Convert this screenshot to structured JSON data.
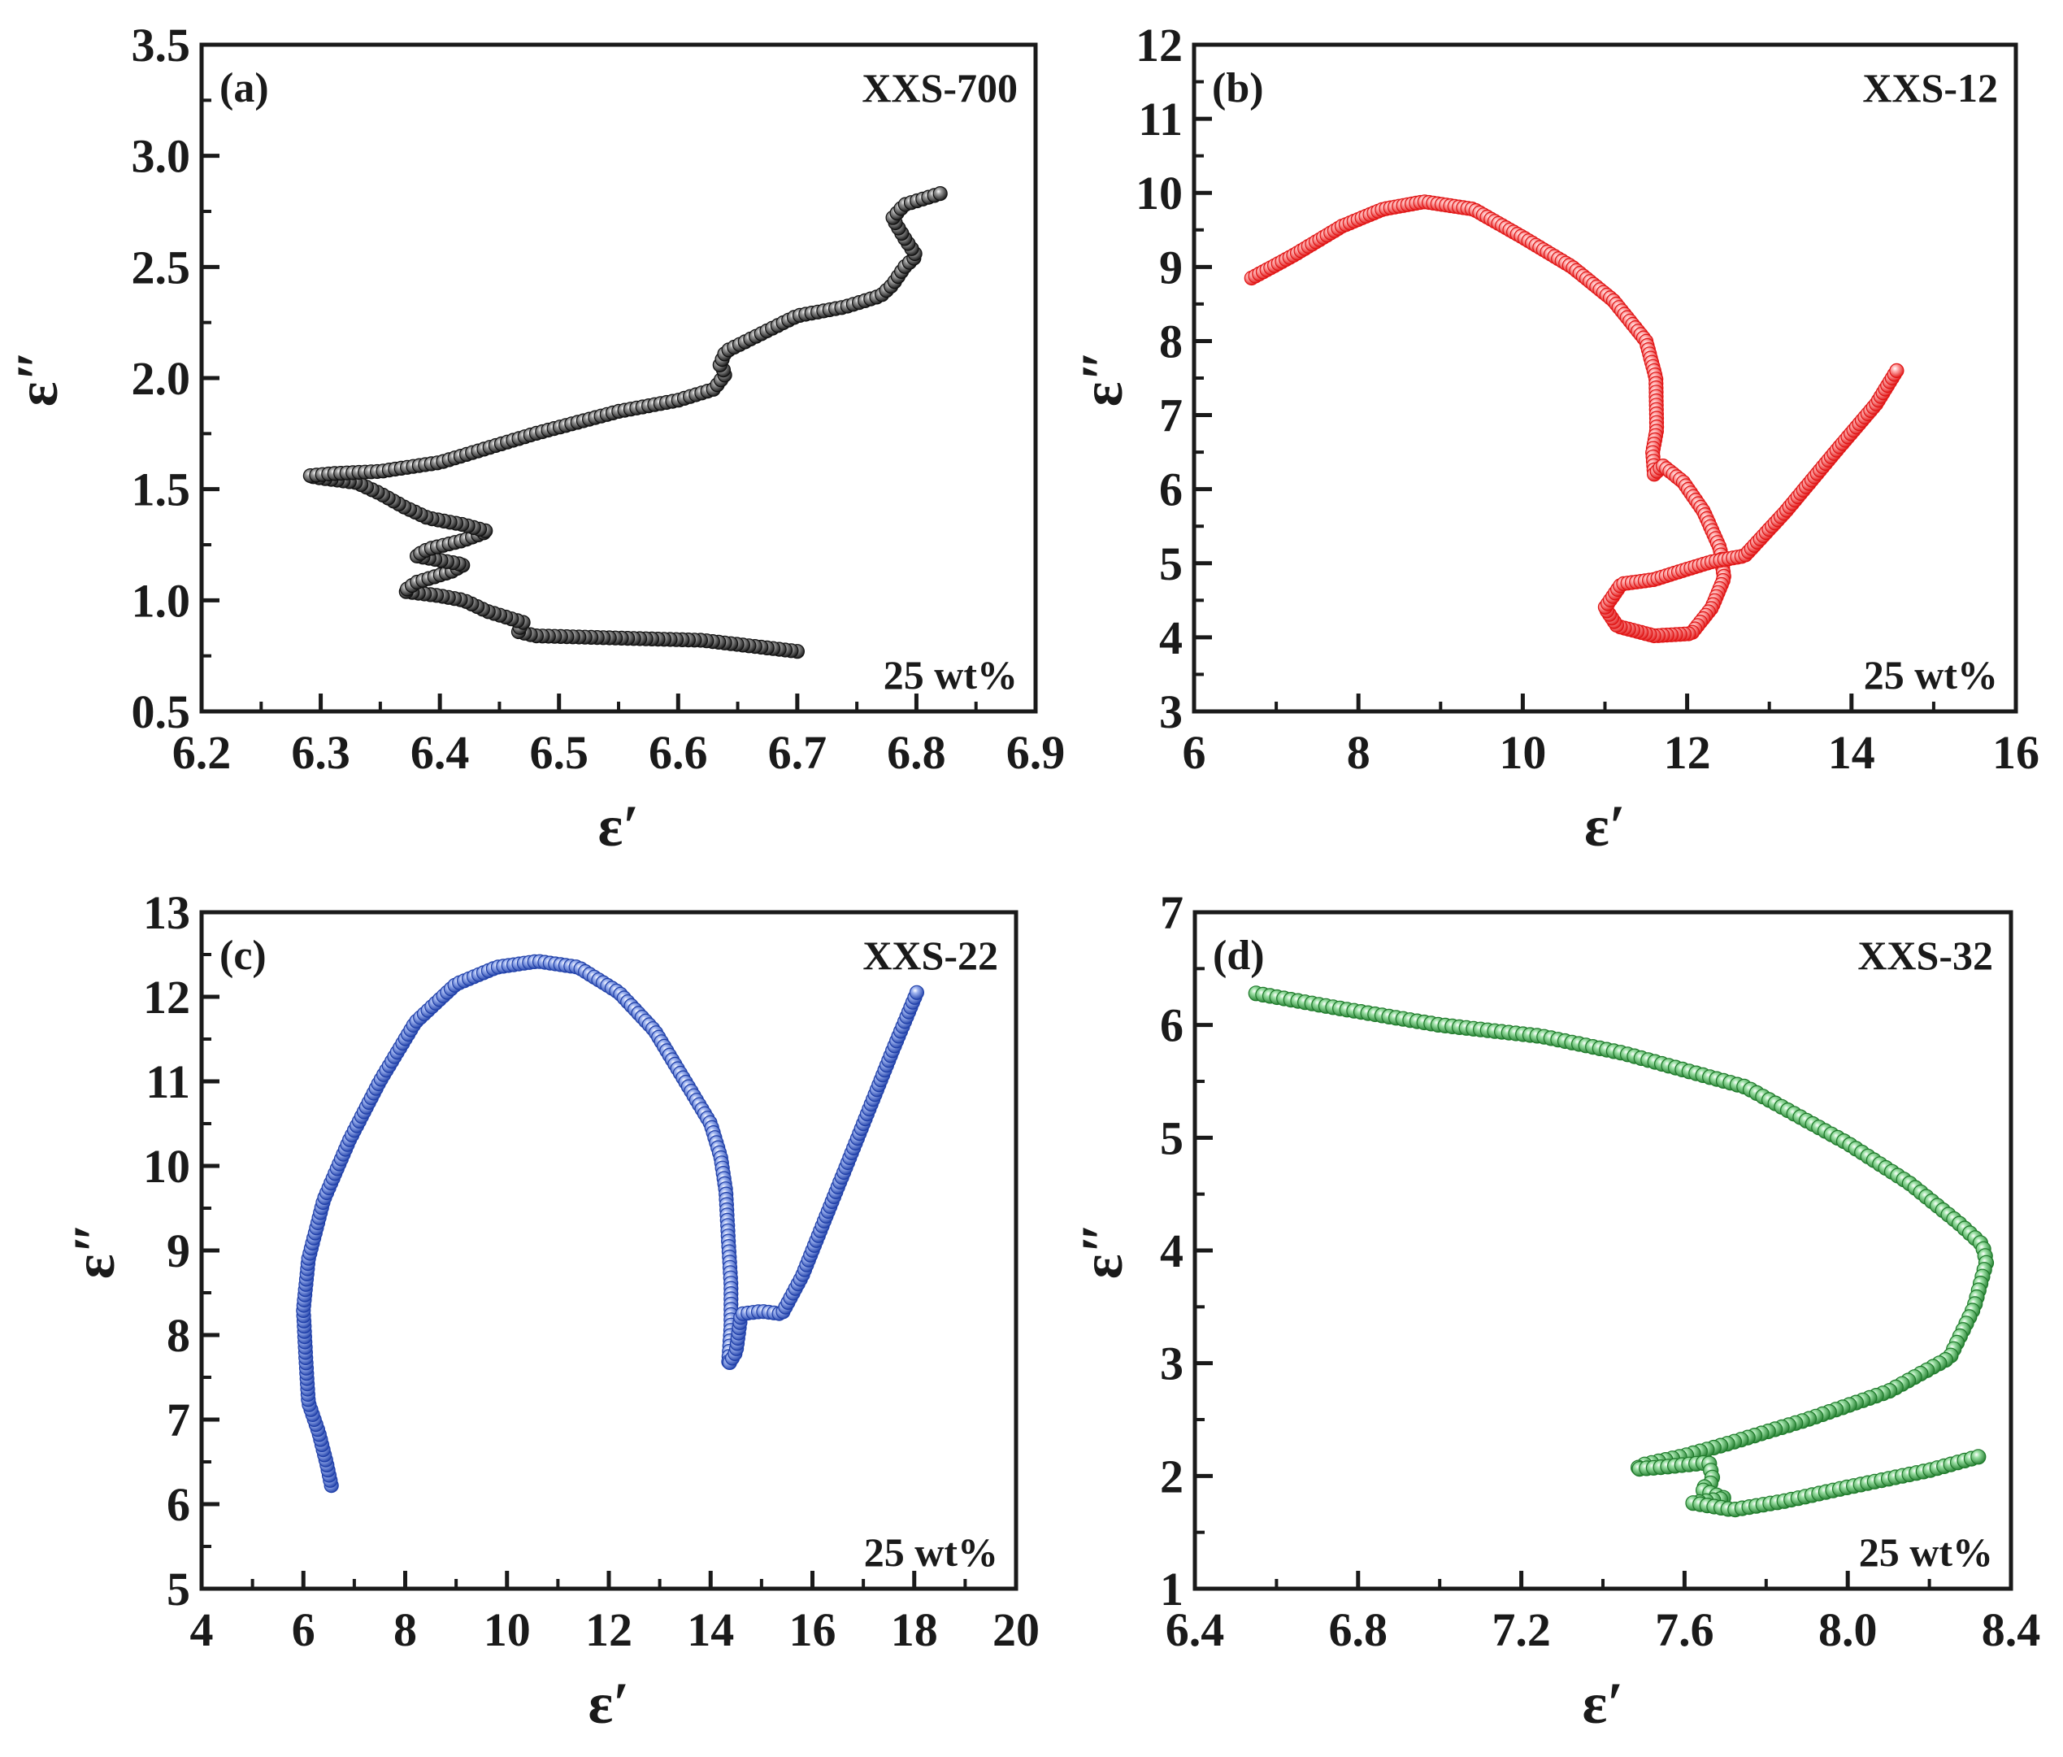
{
  "figure": {
    "marker_style": "sphere"
  },
  "chart_data": [
    {
      "type": "scatter",
      "panel_label": "(a)",
      "title": "XXS-700",
      "annotation": "25 wt%",
      "xlabel": "ε′",
      "ylabel": "ε″",
      "color": "#111111",
      "highlight": "#9a9a9a",
      "xlim": [
        6.2,
        6.9
      ],
      "ylim": [
        0.5,
        3.5
      ],
      "xticks": [
        6.2,
        6.3,
        6.4,
        6.5,
        6.6,
        6.7,
        6.8,
        6.9
      ],
      "xtick_labels": [
        "6.2",
        "6.3",
        "6.4",
        "6.5",
        "6.6",
        "6.7",
        "6.8",
        "6.9"
      ],
      "yticks": [
        0.5,
        1.0,
        1.5,
        2.0,
        2.5,
        3.0,
        3.5
      ],
      "ytick_labels": [
        "0.5",
        "1.0",
        "1.5",
        "2.0",
        "2.5",
        "3.0",
        "3.5"
      ],
      "path": [
        [
          6.7,
          0.77
        ],
        [
          6.62,
          0.82
        ],
        [
          6.55,
          0.83
        ],
        [
          6.48,
          0.84
        ],
        [
          6.465,
          0.86
        ],
        [
          6.47,
          0.9
        ],
        [
          6.44,
          0.95
        ],
        [
          6.42,
          1.0
        ],
        [
          6.4,
          1.02
        ],
        [
          6.37,
          1.04
        ],
        [
          6.38,
          1.08
        ],
        [
          6.41,
          1.13
        ],
        [
          6.42,
          1.16
        ],
        [
          6.4,
          1.18
        ],
        [
          6.38,
          1.2
        ],
        [
          6.39,
          1.23
        ],
        [
          6.42,
          1.27
        ],
        [
          6.44,
          1.31
        ],
        [
          6.42,
          1.34
        ],
        [
          6.39,
          1.37
        ],
        [
          6.37,
          1.42
        ],
        [
          6.35,
          1.48
        ],
        [
          6.33,
          1.53
        ],
        [
          6.3,
          1.55
        ],
        [
          6.29,
          1.56
        ],
        [
          6.31,
          1.57
        ],
        [
          6.35,
          1.58
        ],
        [
          6.4,
          1.62
        ],
        [
          6.48,
          1.75
        ],
        [
          6.55,
          1.85
        ],
        [
          6.6,
          1.9
        ],
        [
          6.63,
          1.95
        ],
        [
          6.64,
          2.02
        ],
        [
          6.635,
          2.06
        ],
        [
          6.64,
          2.12
        ],
        [
          6.7,
          2.28
        ],
        [
          6.74,
          2.32
        ],
        [
          6.77,
          2.37
        ],
        [
          6.78,
          2.42
        ],
        [
          6.79,
          2.5
        ],
        [
          6.8,
          2.55
        ],
        [
          6.79,
          2.63
        ],
        [
          6.78,
          2.72
        ],
        [
          6.79,
          2.78
        ],
        [
          6.82,
          2.83
        ]
      ],
      "n_points": 260
    },
    {
      "type": "scatter",
      "panel_label": "(b)",
      "title": "XXS-12",
      "annotation": "25 wt%",
      "xlabel": "ε′",
      "ylabel": "ε″",
      "color": "#e01414",
      "highlight": "#ffb0b0",
      "xlim": [
        6,
        16
      ],
      "ylim": [
        3,
        12
      ],
      "xticks": [
        6,
        8,
        10,
        12,
        14,
        16
      ],
      "xtick_labels": [
        "6",
        "8",
        "10",
        "12",
        "14",
        "16"
      ],
      "yticks": [
        3,
        4,
        5,
        6,
        7,
        8,
        9,
        10,
        11,
        12
      ],
      "ytick_labels": [
        "3",
        "4",
        "5",
        "6",
        "7",
        "8",
        "9",
        "10",
        "11",
        "12"
      ],
      "path": [
        [
          6.7,
          8.85
        ],
        [
          7.2,
          9.15
        ],
        [
          7.8,
          9.55
        ],
        [
          8.3,
          9.78
        ],
        [
          8.8,
          9.88
        ],
        [
          9.4,
          9.78
        ],
        [
          10.0,
          9.4
        ],
        [
          10.6,
          9.0
        ],
        [
          11.1,
          8.55
        ],
        [
          11.5,
          8.0
        ],
        [
          11.62,
          7.5
        ],
        [
          11.63,
          6.8
        ],
        [
          11.58,
          6.5
        ],
        [
          11.6,
          6.2
        ],
        [
          11.7,
          6.32
        ],
        [
          11.95,
          6.1
        ],
        [
          12.2,
          5.7
        ],
        [
          12.4,
          5.2
        ],
        [
          12.45,
          4.8
        ],
        [
          12.3,
          4.4
        ],
        [
          12.05,
          4.05
        ],
        [
          11.6,
          4.02
        ],
        [
          11.15,
          4.15
        ],
        [
          11.0,
          4.4
        ],
        [
          11.2,
          4.72
        ],
        [
          11.6,
          4.78
        ],
        [
          12.0,
          4.92
        ],
        [
          12.3,
          5.02
        ],
        [
          12.7,
          5.1
        ],
        [
          13.2,
          5.7
        ],
        [
          13.8,
          6.5
        ],
        [
          14.3,
          7.15
        ],
        [
          14.55,
          7.6
        ]
      ],
      "n_points": 300
    },
    {
      "type": "scatter",
      "panel_label": "(c)",
      "title": "XXS-22",
      "annotation": "25 wt%",
      "xlabel": "ε′",
      "ylabel": "ε″",
      "color": "#1f3fa8",
      "highlight": "#9fb4f0",
      "xlim": [
        4,
        20
      ],
      "ylim": [
        5,
        13
      ],
      "xticks": [
        4,
        6,
        8,
        10,
        12,
        14,
        16,
        18,
        20
      ],
      "xtick_labels": [
        "4",
        "6",
        "8",
        "10",
        "12",
        "14",
        "16",
        "18",
        "20"
      ],
      "yticks": [
        5,
        6,
        7,
        8,
        9,
        10,
        11,
        12,
        13
      ],
      "ytick_labels": [
        "5",
        "6",
        "7",
        "8",
        "9",
        "10",
        "11",
        "12",
        "13"
      ],
      "path": [
        [
          6.55,
          6.22
        ],
        [
          6.45,
          6.5
        ],
        [
          6.3,
          6.85
        ],
        [
          6.1,
          7.2
        ],
        [
          6.05,
          7.7
        ],
        [
          6.0,
          8.3
        ],
        [
          6.1,
          8.9
        ],
        [
          6.4,
          9.6
        ],
        [
          6.9,
          10.3
        ],
        [
          7.5,
          11.0
        ],
        [
          8.2,
          11.7
        ],
        [
          9.0,
          12.15
        ],
        [
          9.8,
          12.35
        ],
        [
          10.6,
          12.42
        ],
        [
          11.4,
          12.35
        ],
        [
          12.2,
          12.05
        ],
        [
          12.9,
          11.6
        ],
        [
          13.5,
          11.0
        ],
        [
          14.0,
          10.5
        ],
        [
          14.2,
          10.1
        ],
        [
          14.3,
          9.7
        ],
        [
          14.35,
          9.1
        ],
        [
          14.4,
          8.6
        ],
        [
          14.4,
          8.1
        ],
        [
          14.35,
          7.65
        ],
        [
          14.5,
          7.8
        ],
        [
          14.6,
          8.25
        ],
        [
          15.0,
          8.28
        ],
        [
          15.4,
          8.25
        ],
        [
          15.8,
          8.7
        ],
        [
          16.4,
          9.6
        ],
        [
          17.0,
          10.5
        ],
        [
          17.6,
          11.4
        ],
        [
          18.05,
          12.05
        ]
      ],
      "n_points": 300
    },
    {
      "type": "scatter",
      "panel_label": "(d)",
      "title": "XXS-32",
      "annotation": "25 wt%",
      "xlabel": "ε′",
      "ylabel": "ε″",
      "color": "#1e7a2a",
      "highlight": "#9be0a4",
      "xlim": [
        6.4,
        8.4
      ],
      "ylim": [
        1,
        7
      ],
      "xticks": [
        6.4,
        6.8,
        7.2,
        7.6,
        8.0,
        8.4
      ],
      "xtick_labels": [
        "6.4",
        "6.8",
        "7.2",
        "7.6",
        "8.0",
        "8.4"
      ],
      "yticks": [
        1,
        2,
        3,
        4,
        5,
        6,
        7
      ],
      "ytick_labels": [
        "1",
        "2",
        "3",
        "4",
        "5",
        "6",
        "7"
      ],
      "path": [
        [
          6.55,
          6.28
        ],
        [
          6.75,
          6.15
        ],
        [
          7.0,
          6.0
        ],
        [
          7.25,
          5.9
        ],
        [
          7.45,
          5.75
        ],
        [
          7.6,
          5.6
        ],
        [
          7.75,
          5.45
        ],
        [
          7.85,
          5.25
        ],
        [
          8.0,
          4.95
        ],
        [
          8.15,
          4.6
        ],
        [
          8.27,
          4.25
        ],
        [
          8.33,
          4.05
        ],
        [
          8.34,
          3.9
        ],
        [
          8.31,
          3.5
        ],
        [
          8.25,
          3.05
        ],
        [
          8.1,
          2.75
        ],
        [
          7.9,
          2.5
        ],
        [
          7.7,
          2.28
        ],
        [
          7.6,
          2.18
        ],
        [
          7.5,
          2.1
        ],
        [
          7.48,
          2.06
        ],
        [
          7.55,
          2.08
        ],
        [
          7.66,
          2.12
        ],
        [
          7.67,
          1.95
        ],
        [
          7.64,
          1.88
        ],
        [
          7.7,
          1.8
        ],
        [
          7.62,
          1.76
        ],
        [
          7.72,
          1.7
        ],
        [
          7.85,
          1.78
        ],
        [
          8.0,
          1.9
        ],
        [
          8.2,
          2.05
        ],
        [
          8.32,
          2.17
        ]
      ],
      "n_points": 240
    }
  ]
}
